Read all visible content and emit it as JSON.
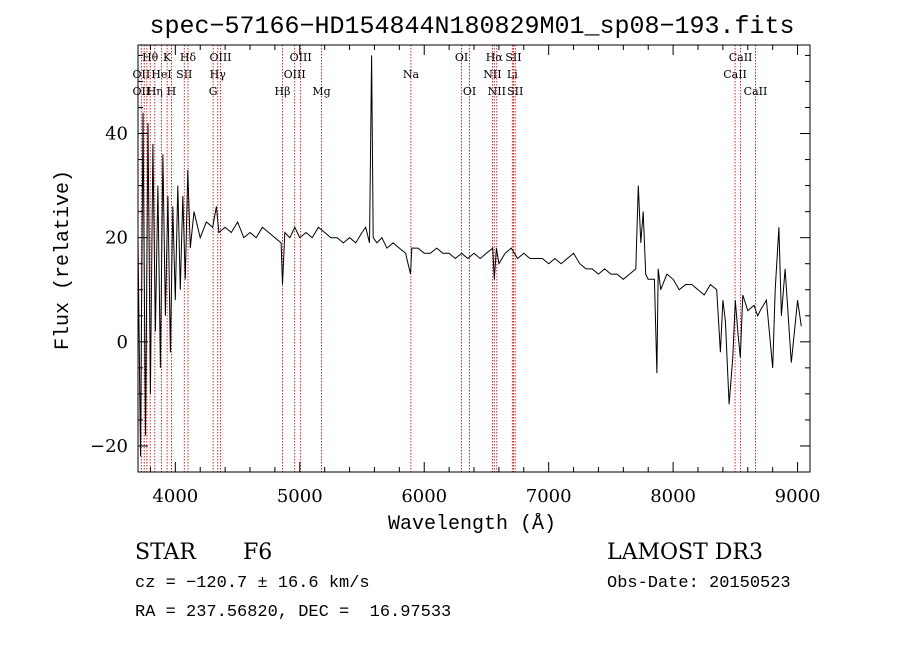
{
  "chart_data": {
    "type": "line",
    "title": "spec−57166−HD154844N180829M01_sp08−193.fits",
    "xlabel": "Wavelength (Å)",
    "ylabel": "Flux (relative)",
    "xlim": [
      3700,
      9100
    ],
    "ylim": [
      -25,
      57
    ],
    "xticks": [
      4000,
      5000,
      6000,
      7000,
      8000,
      9000
    ],
    "xtick_labels": [
      "4000",
      "5000",
      "6000",
      "7000",
      "8000",
      "9000"
    ],
    "yticks": [
      -20,
      0,
      20,
      40
    ],
    "ytick_labels": [
      "−20",
      "0",
      "20",
      "40"
    ],
    "series": [
      {
        "name": "spectrum",
        "x": [
          3700,
          3720,
          3740,
          3760,
          3780,
          3800,
          3820,
          3840,
          3860,
          3880,
          3900,
          3920,
          3940,
          3960,
          3980,
          4000,
          4020,
          4040,
          4060,
          4080,
          4100,
          4120,
          4150,
          4200,
          4250,
          4300,
          4330,
          4350,
          4400,
          4450,
          4500,
          4550,
          4600,
          4650,
          4700,
          4750,
          4800,
          4850,
          4861,
          4880,
          4920,
          4960,
          5000,
          5050,
          5100,
          5150,
          5200,
          5250,
          5300,
          5350,
          5400,
          5450,
          5500,
          5530,
          5560,
          5577,
          5590,
          5620,
          5660,
          5700,
          5750,
          5800,
          5850,
          5890,
          5900,
          5950,
          6000,
          6050,
          6100,
          6150,
          6200,
          6250,
          6300,
          6350,
          6400,
          6450,
          6500,
          6550,
          6563,
          6580,
          6600,
          6650,
          6700,
          6750,
          6800,
          6850,
          6900,
          6950,
          7000,
          7050,
          7100,
          7150,
          7200,
          7250,
          7300,
          7350,
          7400,
          7450,
          7500,
          7550,
          7600,
          7650,
          7700,
          7720,
          7740,
          7760,
          7780,
          7800,
          7850,
          7870,
          7880,
          7900,
          7950,
          8000,
          8050,
          8100,
          8150,
          8200,
          8250,
          8300,
          8350,
          8380,
          8400,
          8420,
          8450,
          8480,
          8500,
          8520,
          8540,
          8560,
          8600,
          8650,
          8680,
          8700,
          8750,
          8800,
          8820,
          8850,
          8870,
          8900,
          8950,
          9000,
          9030
        ],
        "values": [
          20,
          -22,
          44,
          -18,
          42,
          -10,
          38,
          2,
          30,
          -5,
          36,
          5,
          28,
          -2,
          26,
          8,
          30,
          10,
          28,
          12,
          33,
          18,
          25,
          20,
          23,
          22,
          26,
          21,
          22,
          21,
          23,
          20,
          21,
          20,
          22,
          21,
          20,
          19,
          11,
          21,
          20,
          22,
          20,
          21,
          20,
          22,
          21,
          20,
          20,
          19,
          20,
          19,
          21,
          22,
          19,
          55,
          20,
          19,
          20,
          18,
          19,
          18,
          17,
          13,
          18,
          18,
          17,
          17,
          18,
          17,
          17,
          16,
          17,
          16,
          17,
          16,
          17,
          18,
          12,
          18,
          15,
          17,
          18,
          16,
          17,
          16,
          16,
          16,
          15,
          16,
          15,
          16,
          17,
          15,
          14,
          14,
          13,
          14,
          13,
          13,
          12,
          13,
          14,
          30,
          19,
          25,
          13,
          12,
          12,
          -6,
          14,
          10,
          13,
          12,
          10,
          11,
          11,
          10,
          9,
          11,
          10,
          -2,
          8,
          4,
          -12,
          -3,
          8,
          2,
          -3,
          9,
          6,
          7,
          5,
          6,
          8,
          -5,
          10,
          22,
          5,
          14,
          -4,
          8,
          3
        ]
      }
    ],
    "line_annotations": {
      "rows": [
        [
          {
            "label": "Hθ",
            "x": 3798
          },
          {
            "label": "K",
            "x": 3934
          },
          {
            "label": "Hδ",
            "x": 4102
          },
          {
            "label": "OIII",
            "x": 4363
          },
          {
            "label": "OIII",
            "x": 5007
          },
          {
            "label": "OI",
            "x": 6300
          },
          {
            "label": "Hα",
            "x": 6563
          },
          {
            "label": "SII",
            "x": 6717
          },
          {
            "label": "CaII",
            "x": 8542
          }
        ],
        [
          {
            "label": "OII",
            "x": 3727
          },
          {
            "label": "HeI",
            "x": 3889
          },
          {
            "label": "SII",
            "x": 4072
          },
          {
            "label": "Hγ",
            "x": 4341
          },
          {
            "label": "OIII",
            "x": 4959
          },
          {
            "label": "Na",
            "x": 5893
          },
          {
            "label": "NII",
            "x": 6548
          },
          {
            "label": "Li",
            "x": 6708
          },
          {
            "label": "CaII",
            "x": 8498
          }
        ],
        [
          {
            "label": "OII",
            "x": 3727
          },
          {
            "label": "Hη",
            "x": 3835
          },
          {
            "label": "H",
            "x": 3969
          },
          {
            "label": "G",
            "x": 4304
          },
          {
            "label": "Hβ",
            "x": 4861
          },
          {
            "label": "Mg",
            "x": 5175
          },
          {
            "label": "OI",
            "x": 6364
          },
          {
            "label": "NII",
            "x": 6583
          },
          {
            "label": "SII",
            "x": 6731
          },
          {
            "label": "CaII",
            "x": 8662
          }
        ]
      ],
      "line_positions": [
        3727,
        3750,
        3771,
        3798,
        3835,
        3889,
        3934,
        3969,
        4072,
        4102,
        4304,
        4341,
        4363,
        4861,
        4959,
        5007,
        5175,
        5893,
        6300,
        6364,
        6548,
        6563,
        6583,
        6708,
        6717,
        6731,
        8498,
        8542,
        8662
      ],
      "line_color": "#c01818"
    }
  },
  "info": {
    "object_type": "STAR",
    "subclass": "F6",
    "survey": "LAMOST DR3",
    "cz": "cz = −120.7 ± 16.6 km/s",
    "obs_date": "Obs-Date: 20150523",
    "coords": "RA = 237.56820, DEC =  16.97533"
  }
}
